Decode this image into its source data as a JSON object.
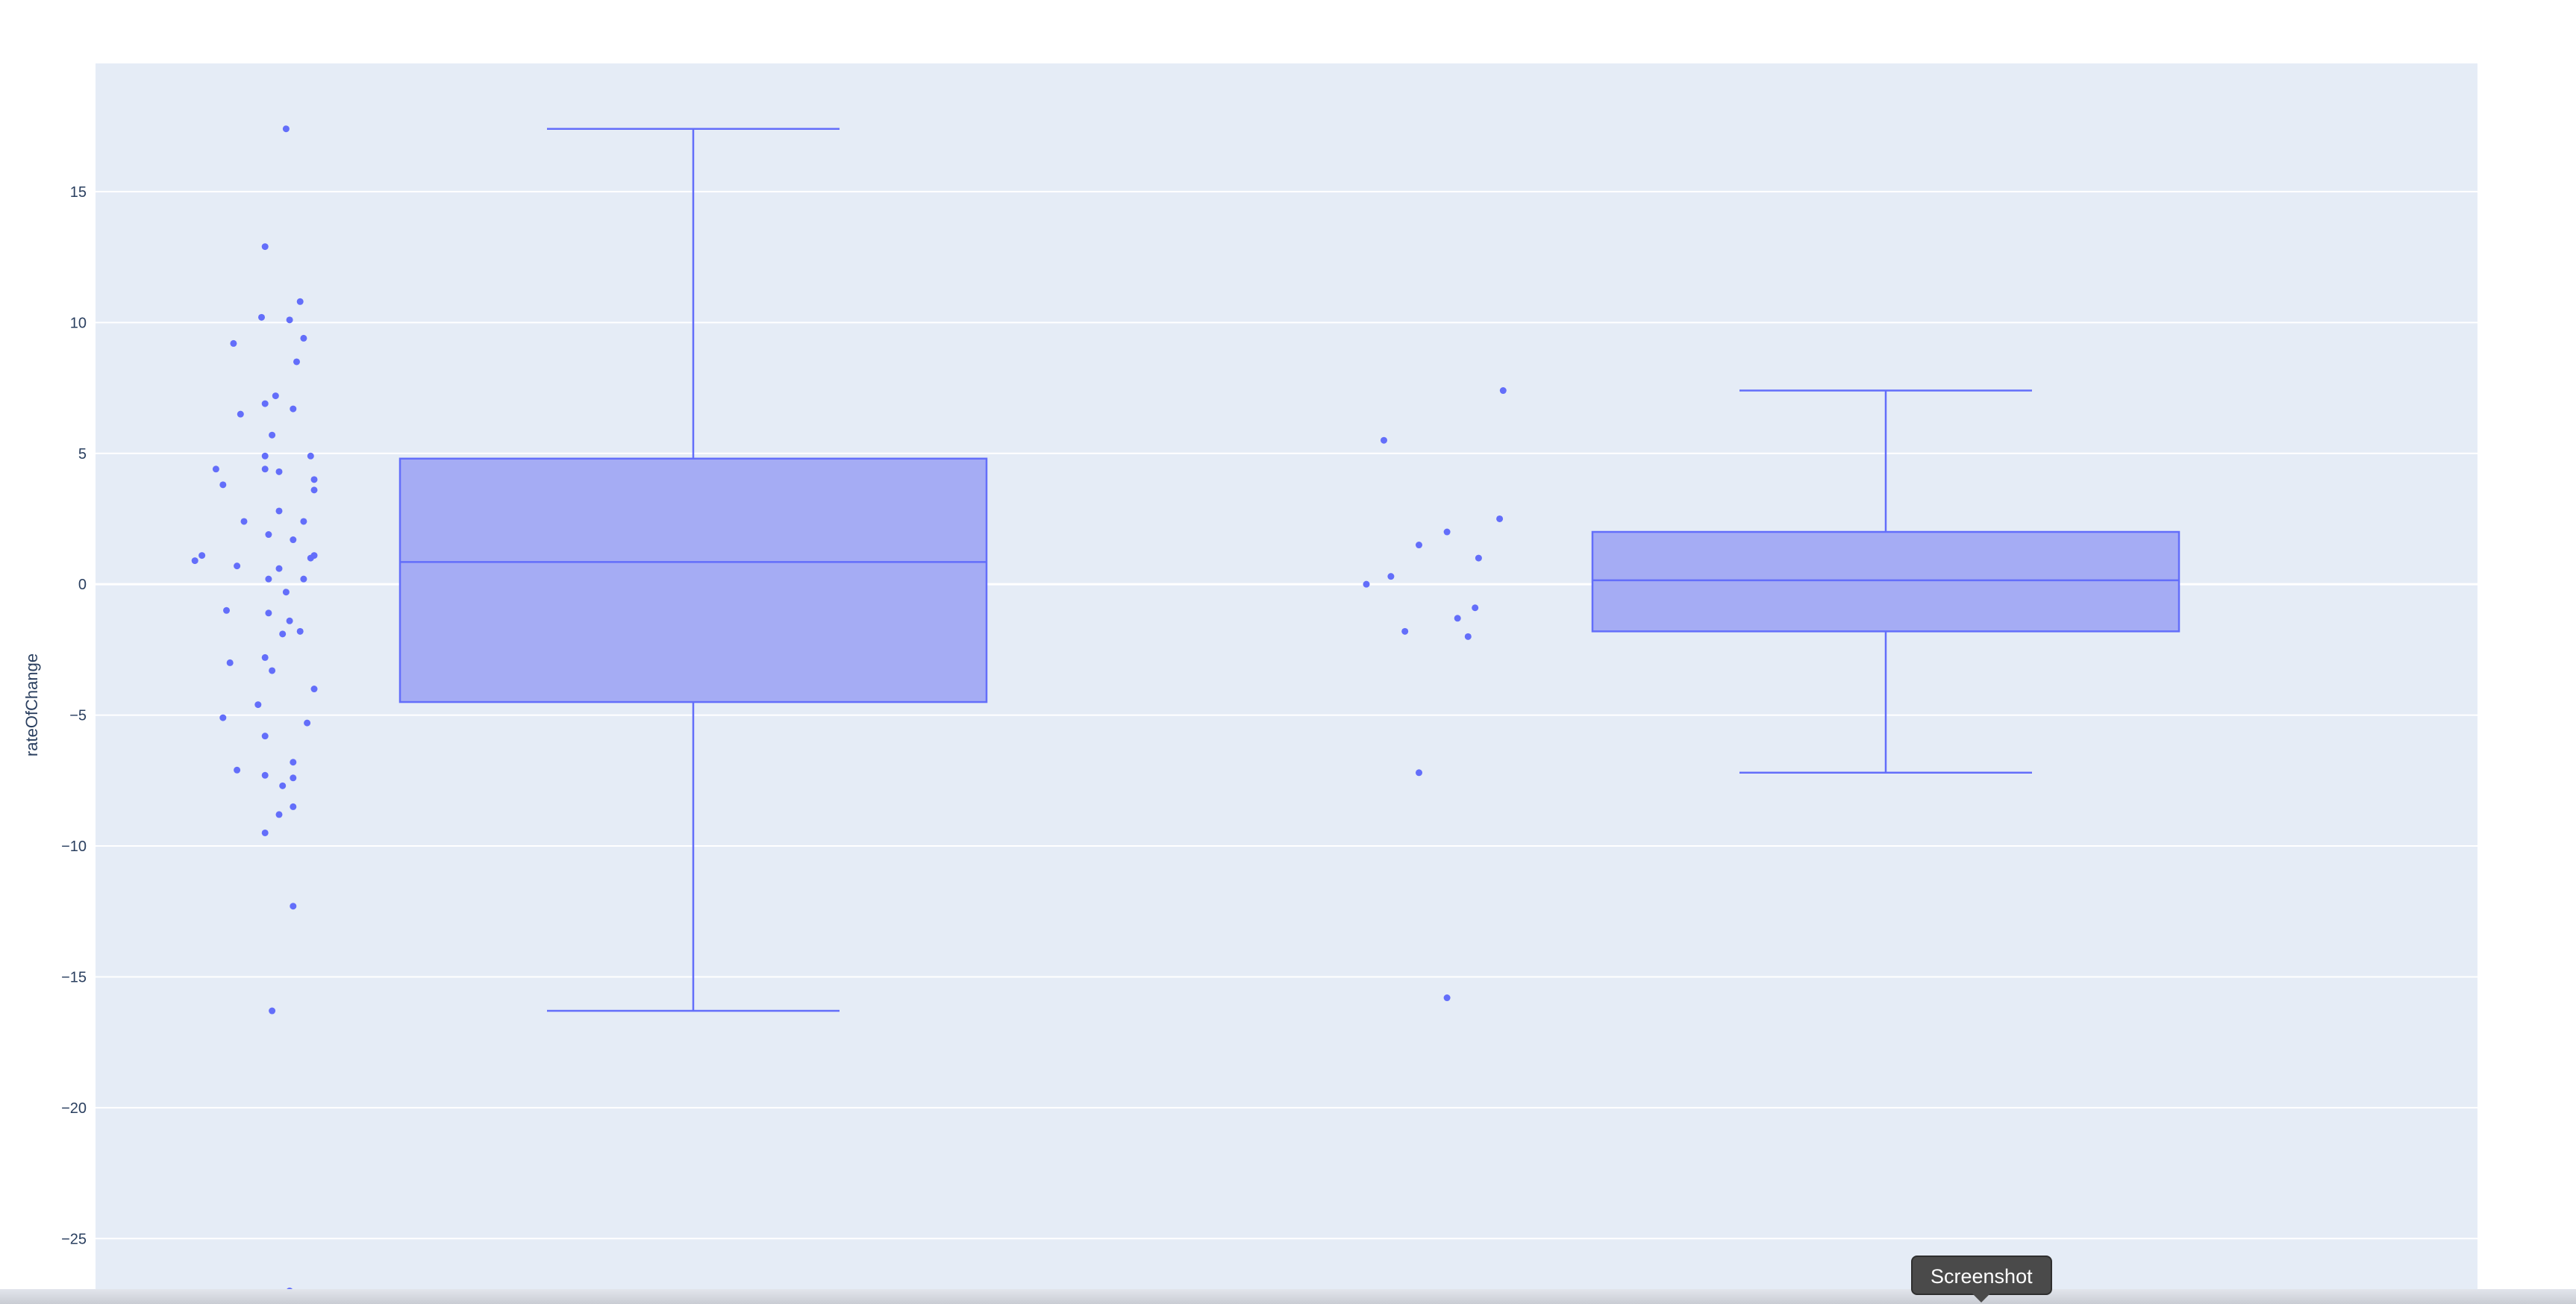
{
  "chart_data": {
    "type": "box",
    "ylabel": "rateOfChange",
    "y_ticks": [
      15,
      10,
      5,
      0,
      -5,
      -10,
      -15,
      -20,
      -25
    ],
    "y_tick_labels": [
      "15",
      "10",
      "5",
      "0",
      "−5",
      "−10",
      "−15",
      "−20",
      "−25"
    ],
    "ylim": [
      -27.5,
      19.9
    ],
    "grid": true,
    "colors": {
      "plot_bg": "#e5ecf6",
      "grid": "#ffffff",
      "series": "#636efa",
      "box_fill": "#a5acf4"
    },
    "series": [
      {
        "box": {
          "q1": -4.5,
          "median": 0.85,
          "q3": 4.8,
          "whisker_low": -16.3,
          "whisker_high": 17.4
        },
        "points": [
          [
            0.32,
            17.4
          ],
          [
            0.26,
            12.9
          ],
          [
            0.36,
            10.8
          ],
          [
            0.25,
            10.2
          ],
          [
            0.33,
            10.1
          ],
          [
            0.37,
            9.4
          ],
          [
            0.17,
            9.2
          ],
          [
            0.35,
            8.5
          ],
          [
            0.29,
            7.2
          ],
          [
            0.26,
            6.9
          ],
          [
            0.34,
            6.7
          ],
          [
            0.19,
            6.5
          ],
          [
            0.28,
            5.7
          ],
          [
            0.39,
            4.9
          ],
          [
            0.26,
            4.9
          ],
          [
            0.12,
            4.4
          ],
          [
            0.26,
            4.4
          ],
          [
            0.3,
            4.3
          ],
          [
            0.4,
            4.0
          ],
          [
            0.14,
            3.8
          ],
          [
            0.4,
            3.6
          ],
          [
            0.3,
            2.8
          ],
          [
            0.2,
            2.4
          ],
          [
            0.37,
            2.4
          ],
          [
            0.27,
            1.9
          ],
          [
            0.34,
            1.7
          ],
          [
            0.4,
            1.1
          ],
          [
            0.08,
            1.1
          ],
          [
            0.39,
            1.0
          ],
          [
            0.06,
            0.9
          ],
          [
            0.18,
            0.7
          ],
          [
            0.3,
            0.6
          ],
          [
            0.37,
            0.2
          ],
          [
            0.27,
            0.2
          ],
          [
            0.32,
            -0.3
          ],
          [
            0.15,
            -1.0
          ],
          [
            0.27,
            -1.1
          ],
          [
            0.33,
            -1.4
          ],
          [
            0.36,
            -1.8
          ],
          [
            0.31,
            -1.9
          ],
          [
            0.26,
            -2.8
          ],
          [
            0.16,
            -3.0
          ],
          [
            0.28,
            -3.3
          ],
          [
            0.4,
            -4.0
          ],
          [
            0.24,
            -4.6
          ],
          [
            0.14,
            -5.1
          ],
          [
            0.38,
            -5.3
          ],
          [
            0.26,
            -5.8
          ],
          [
            0.34,
            -6.8
          ],
          [
            0.18,
            -7.1
          ],
          [
            0.26,
            -7.3
          ],
          [
            0.34,
            -7.4
          ],
          [
            0.31,
            -7.7
          ],
          [
            0.34,
            -8.5
          ],
          [
            0.3,
            -8.8
          ],
          [
            0.26,
            -9.5
          ],
          [
            0.34,
            -12.3
          ],
          [
            0.28,
            -16.3
          ],
          [
            0.33,
            -27.0
          ]
        ]
      },
      {
        "box": {
          "q1": -1.8,
          "median": 0.15,
          "q3": 2.0,
          "whisker_low": -7.2,
          "whisker_high": 7.4
        },
        "points": [
          [
            1.39,
            7.4
          ],
          [
            1.05,
            5.5
          ],
          [
            1.38,
            2.5
          ],
          [
            1.23,
            2.0
          ],
          [
            1.15,
            1.5
          ],
          [
            1.32,
            1.0
          ],
          [
            1.07,
            0.3
          ],
          [
            1.0,
            0.0
          ],
          [
            1.31,
            -0.9
          ],
          [
            1.26,
            -1.3
          ],
          [
            1.11,
            -1.8
          ],
          [
            1.29,
            -2.0
          ],
          [
            1.15,
            -7.2
          ],
          [
            1.23,
            -15.8
          ]
        ]
      }
    ]
  },
  "tooltip": {
    "text": "Screenshot"
  }
}
